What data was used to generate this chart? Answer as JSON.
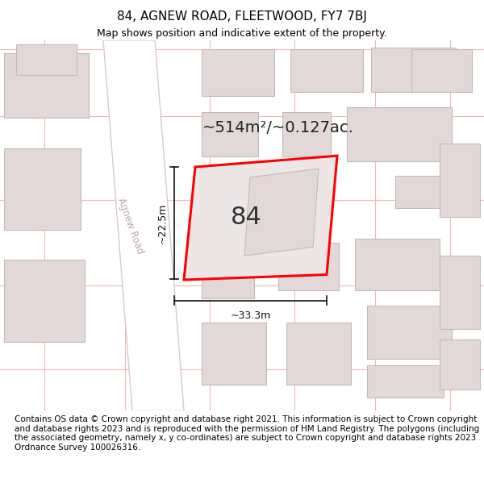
{
  "title": "84, AGNEW ROAD, FLEETWOOD, FY7 7BJ",
  "subtitle": "Map shows position and indicative extent of the property.",
  "area_label": "~514m²/~0.127ac.",
  "property_number": "84",
  "dim_width": "~33.3m",
  "dim_height": "~22.5m",
  "road_label": "Agnew Road",
  "footer_text": "Contains OS data © Crown copyright and database right 2021. This information is subject to Crown copyright and database rights 2023 and is reproduced with the permission of HM Land Registry. The polygons (including the associated geometry, namely x, y co-ordinates) are subject to Crown copyright and database rights 2023 Ordnance Survey 100026316.",
  "map_bg": "#f5eeee",
  "road_color": "#ffffff",
  "road_stroke": "#ddc8c8",
  "building_fill": "#e2d8d8",
  "building_stroke": "#c8b8b8",
  "grid_color": "#f0b8b8",
  "property_fill": "#ece6e6",
  "property_stroke": "#ff0000",
  "dim_line_color": "#111111",
  "title_fontsize": 11,
  "subtitle_fontsize": 9,
  "footer_fontsize": 7.5
}
